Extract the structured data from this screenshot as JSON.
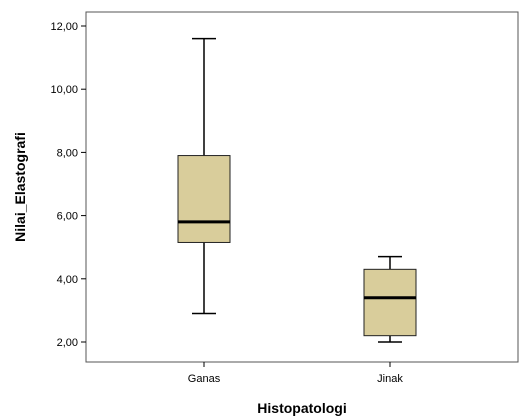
{
  "chart_data": {
    "type": "boxplot",
    "xlabel": "Histopatologi",
    "ylabel": "Nilai_Elastografi",
    "ylim": [
      1.5,
      12.6
    ],
    "yticks": [
      2,
      4,
      6,
      8,
      10,
      12
    ],
    "ytick_labels": [
      "2,00",
      "4,00",
      "6,00",
      "8,00",
      "10,00",
      "12,00"
    ],
    "categories": [
      "Ganas",
      "Jinak"
    ],
    "boxes": [
      {
        "category": "Ganas",
        "min": 2.9,
        "q1": 5.15,
        "median": 5.8,
        "q3": 7.9,
        "max": 11.6
      },
      {
        "category": "Jinak",
        "min": 2.0,
        "q1": 2.2,
        "median": 3.4,
        "q3": 4.3,
        "max": 4.7
      }
    ],
    "grid": false,
    "box_color": "#d9cd9b",
    "line_color": "#000000"
  }
}
